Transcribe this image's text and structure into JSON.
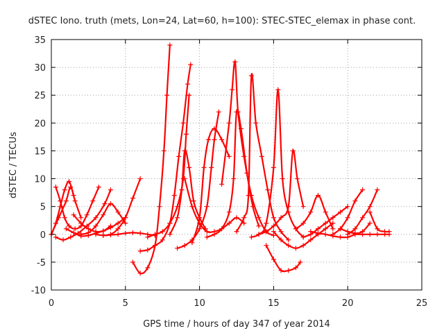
{
  "chart_data": {
    "type": "scatter",
    "title": "dSTEC Iono. truth (mets, Lon=24, Lat=60, h=100): STEC-STEC_elemax in phase cont.",
    "xlabel": "GPS time / hours of day 347 of year 2014",
    "ylabel": "dSTEC  / TECUs",
    "xlim": [
      0,
      25
    ],
    "ylim": [
      -10,
      35
    ],
    "xticks": [
      0,
      5,
      10,
      15,
      20,
      25
    ],
    "yticks": [
      -10,
      -5,
      0,
      5,
      10,
      15,
      20,
      25,
      30,
      35
    ],
    "grid": true,
    "marker": "+",
    "color": "#ff0000",
    "series": [
      {
        "x": [
          0.0,
          0.3,
          0.6,
          0.9,
          1.2,
          1.5
        ],
        "y": [
          0,
          2,
          5,
          8,
          9.5,
          7
        ]
      },
      {
        "x": [
          0.0,
          0.5,
          1.0,
          1.3,
          1.6,
          2.0
        ],
        "y": [
          0,
          3,
          6,
          8.5,
          6,
          3
        ]
      },
      {
        "x": [
          0.3,
          0.6,
          0.9,
          1.2,
          1.6,
          2.0,
          2.4,
          2.8,
          3.2
        ],
        "y": [
          8.5,
          6,
          3,
          1.5,
          1,
          1.5,
          3.5,
          6,
          8.5
        ]
      },
      {
        "x": [
          0.3,
          0.8,
          1.3,
          1.8,
          2.4,
          3.0,
          3.6,
          4.0
        ],
        "y": [
          -0.5,
          -1,
          -0.5,
          0.2,
          1.5,
          3,
          5.5,
          8
        ]
      },
      {
        "x": [
          1.0,
          1.5,
          2.0,
          2.5,
          3.0,
          3.5,
          4.0,
          4.5,
          5.0
        ],
        "y": [
          1,
          0.3,
          -0.3,
          -0.2,
          0.2,
          0.6,
          1.2,
          2,
          3
        ]
      },
      {
        "x": [
          1.5,
          2.0,
          2.5,
          3.0,
          3.5,
          4.0
        ],
        "y": [
          3.5,
          2,
          1,
          0.5,
          0.6,
          1.5
        ]
      },
      {
        "x": [
          2.0,
          2.5,
          3.0,
          3.5,
          4.0,
          4.5,
          5.0
        ],
        "y": [
          0,
          0.3,
          1.5,
          3.5,
          5.5,
          4,
          2
        ]
      },
      {
        "x": [
          3.5,
          4.0,
          4.5,
          5.0,
          5.5,
          6.0
        ],
        "y": [
          -0.2,
          0,
          1,
          3,
          6.5,
          10
        ]
      },
      {
        "x": [
          3.0,
          3.5,
          4.0,
          4.5,
          5.0,
          5.5,
          6.0,
          6.5,
          7.0
        ],
        "y": [
          0,
          -0.2,
          -0.1,
          0,
          0.2,
          0.3,
          0.2,
          0,
          -0.2
        ]
      },
      {
        "x": [
          5.5,
          6.0,
          6.5,
          7.0,
          7.3,
          7.6,
          7.8,
          8.0
        ],
        "y": [
          -5,
          -7,
          -6,
          -2,
          5,
          15,
          25,
          34
        ]
      },
      {
        "x": [
          6.0,
          6.5,
          7.0,
          7.5,
          8.0,
          8.3,
          8.6,
          8.9,
          9.2,
          9.4
        ],
        "y": [
          -3,
          -2.8,
          -2,
          -1,
          2,
          7,
          14,
          20,
          27,
          30.5
        ]
      },
      {
        "x": [
          6.5,
          7.0,
          7.5,
          8.0,
          8.5,
          8.9,
          9.1,
          9.3
        ],
        "y": [
          -0.5,
          0,
          0.5,
          2,
          5,
          10,
          18,
          25
        ]
      },
      {
        "x": [
          8.0,
          8.5,
          8.8,
          9.0,
          9.3,
          9.6,
          10.0,
          10.4
        ],
        "y": [
          0,
          3,
          8,
          15,
          12,
          6,
          3,
          1
        ]
      },
      {
        "x": [
          8.5,
          9.0,
          9.5,
          10.0,
          10.5,
          10.8,
          11.0,
          11.3
        ],
        "y": [
          -2.5,
          -2,
          -1,
          1,
          5,
          12,
          17,
          22
        ]
      },
      {
        "x": [
          9.0,
          9.5,
          10.0,
          10.5,
          11.0,
          11.5,
          12.0,
          12.5,
          13.0
        ],
        "y": [
          10,
          5,
          2,
          0.5,
          0.5,
          1,
          2,
          3,
          2
        ]
      },
      {
        "x": [
          9.5,
          10.0,
          10.3,
          10.6,
          11.0,
          11.5,
          12.0
        ],
        "y": [
          -1.5,
          3,
          12,
          17,
          19,
          17,
          14
        ]
      },
      {
        "x": [
          10.5,
          11.0,
          11.5,
          12.0,
          12.3,
          12.5,
          12.8,
          13.2,
          13.6,
          14.0
        ],
        "y": [
          -0.5,
          0,
          1,
          4,
          10,
          22,
          19,
          11,
          5,
          1.5
        ]
      },
      {
        "x": [
          11.5,
          12.0,
          12.2,
          12.4,
          12.6,
          13.0,
          13.5,
          14.0,
          14.5,
          15.0
        ],
        "y": [
          9,
          20,
          26,
          31,
          22,
          14,
          7,
          3,
          0.5,
          -0.2
        ]
      },
      {
        "x": [
          12.5,
          13.0,
          13.3,
          13.5,
          13.8,
          14.2,
          14.6,
          15.0,
          15.5,
          16.0
        ],
        "y": [
          0.5,
          3,
          7,
          28.5,
          20,
          14,
          8,
          3,
          0.5,
          -1
        ]
      },
      {
        "x": [
          13.5,
          14.0,
          14.5,
          15.0,
          15.3,
          15.6,
          16.0,
          16.5,
          17.0
        ],
        "y": [
          -0.5,
          0,
          2,
          12,
          26,
          10,
          4,
          1,
          -0.5
        ]
      },
      {
        "x": [
          14.0,
          14.5,
          15.0,
          15.5,
          16.0,
          16.3,
          16.6,
          17.0
        ],
        "y": [
          0,
          0.5,
          1.5,
          3,
          5,
          15,
          10,
          5
        ]
      },
      {
        "x": [
          14.5,
          15.0,
          15.5,
          16.0,
          16.5,
          16.8
        ],
        "y": [
          -2,
          -4.5,
          -6.5,
          -6.5,
          -6,
          -5
        ]
      },
      {
        "x": [
          15.0,
          15.5,
          16.0,
          16.5,
          17.0,
          17.5,
          18.0,
          18.5,
          19.0
        ],
        "y": [
          0.5,
          -1,
          -2,
          -2.5,
          -2,
          -1,
          0,
          1,
          2
        ]
      },
      {
        "x": [
          16.5,
          17.0,
          17.5,
          18.0,
          18.5,
          19.0
        ],
        "y": [
          1,
          2,
          4,
          7,
          4,
          1
        ]
      },
      {
        "x": [
          17.0,
          17.5,
          18.0,
          18.5,
          19.0,
          19.5,
          20.0
        ],
        "y": [
          -0.5,
          0,
          1,
          2,
          3,
          4,
          5
        ]
      },
      {
        "x": [
          17.5,
          18.0,
          18.5,
          19.0,
          19.5,
          20.0,
          20.5
        ],
        "y": [
          0.5,
          0.2,
          0,
          -0.3,
          -0.5,
          -0.5,
          0
        ]
      },
      {
        "x": [
          19.0,
          19.5,
          20.0,
          20.5,
          21.0
        ],
        "y": [
          0,
          1,
          3,
          6,
          8
        ]
      },
      {
        "x": [
          19.5,
          20.0,
          20.5,
          21.0,
          21.5
        ],
        "y": [
          1,
          0.5,
          0.2,
          0.5,
          2
        ]
      },
      {
        "x": [
          20.0,
          20.5,
          21.0,
          21.5,
          22.0
        ],
        "y": [
          0,
          1,
          3,
          5,
          8
        ]
      },
      {
        "x": [
          21.5,
          22.0,
          22.5,
          22.8
        ],
        "y": [
          4,
          1,
          0.5,
          0.5
        ]
      },
      {
        "x": [
          20.5,
          21.0,
          21.5,
          22.0,
          22.5,
          22.8
        ],
        "y": [
          0,
          0,
          0,
          0,
          0,
          0
        ]
      }
    ]
  }
}
